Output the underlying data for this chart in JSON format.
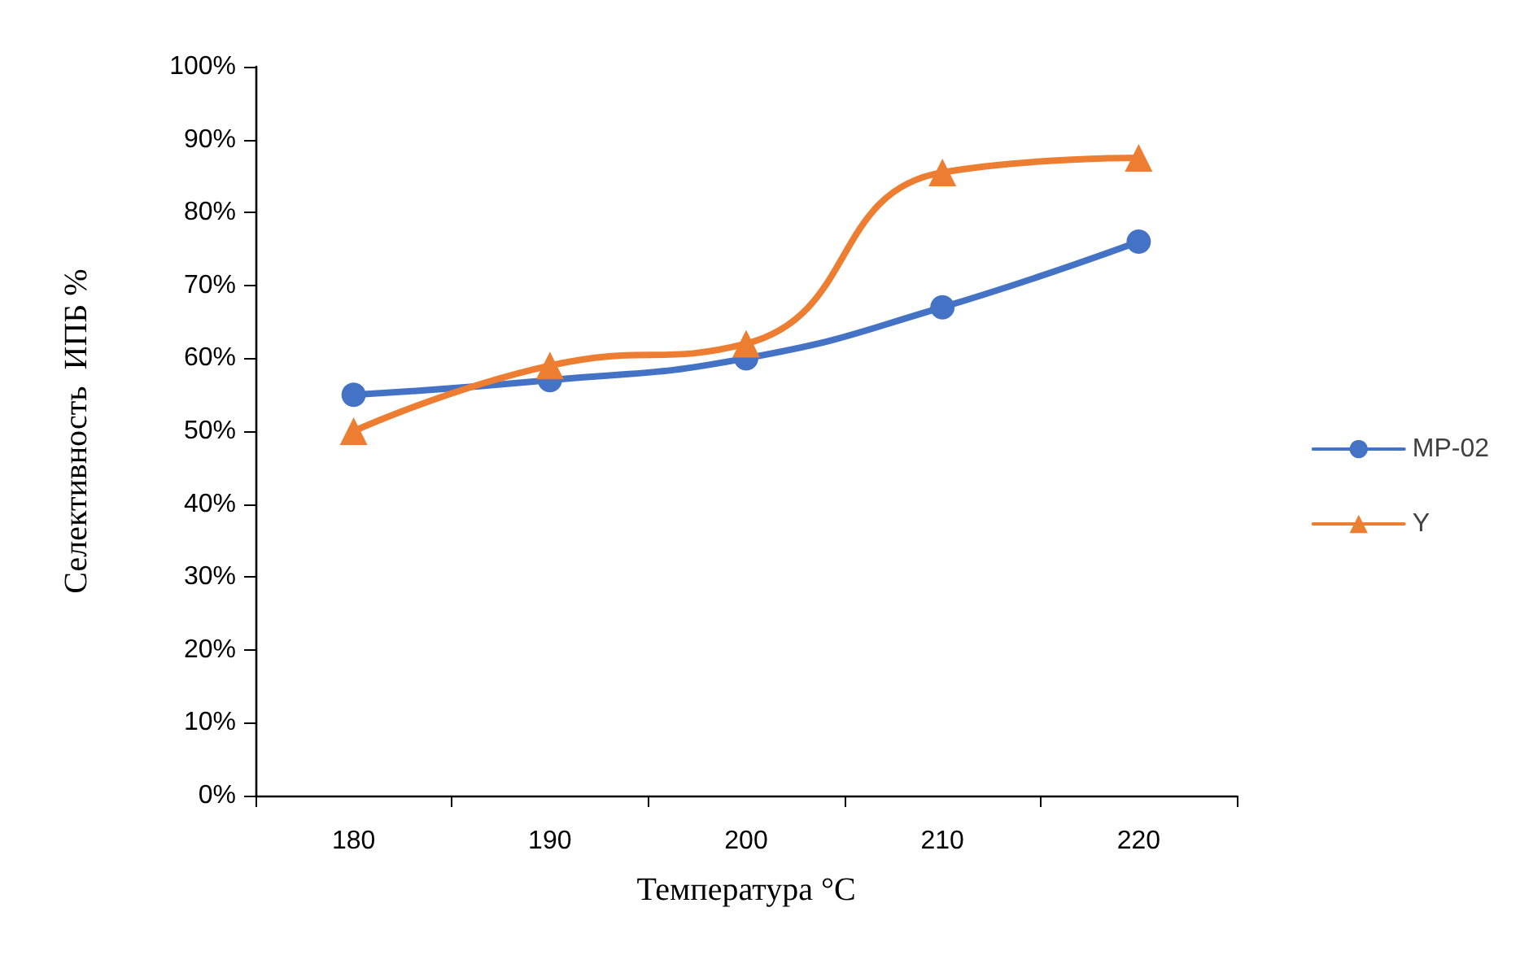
{
  "chart_data": {
    "type": "line",
    "xlabel": "Температура °C",
    "ylabel": "Селективность  ИПБ %",
    "categories": [
      "180",
      "190",
      "200",
      "210",
      "220"
    ],
    "series": [
      {
        "name": "MP-02",
        "color": "#4472c4",
        "marker": "circle",
        "values": [
          55,
          57,
          60,
          67,
          76
        ]
      },
      {
        "name": "Y",
        "color": "#ed7d31",
        "marker": "triangle",
        "values": [
          50,
          59,
          62,
          85.5,
          87.5
        ]
      }
    ],
    "ylim": [
      0,
      100
    ],
    "yticks": [
      {
        "value": 0,
        "label": "0%"
      },
      {
        "value": 10,
        "label": "10%"
      },
      {
        "value": 20,
        "label": "20%"
      },
      {
        "value": 30,
        "label": "30%"
      },
      {
        "value": 40,
        "label": "40%"
      },
      {
        "value": 50,
        "label": "50%"
      },
      {
        "value": 60,
        "label": "60%"
      },
      {
        "value": 70,
        "label": "70%"
      },
      {
        "value": 80,
        "label": "80%"
      },
      {
        "value": 90,
        "label": "90%"
      },
      {
        "value": 100,
        "label": "100%"
      }
    ],
    "grid": false,
    "legend": "right",
    "line_style": "solid"
  }
}
